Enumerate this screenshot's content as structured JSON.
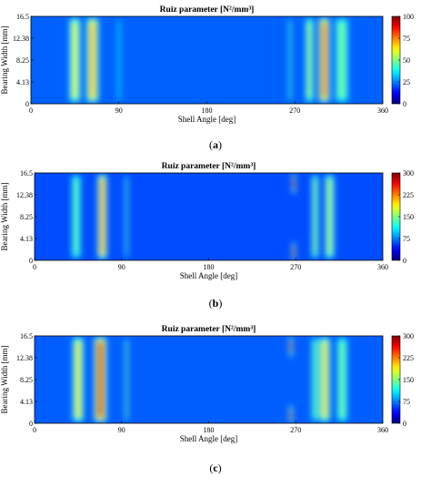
{
  "chart_data": [
    {
      "type": "heatmap",
      "panel_label": "a",
      "title": "Ruiz parameter [N²/mm³]",
      "xlabel": "Shell Angle [deg]",
      "ylabel": "Bearing Width [mm]",
      "x_ticks": [
        "0",
        "90",
        "180",
        "270",
        "360"
      ],
      "y_ticks": [
        "0",
        "4.13",
        "8.25",
        "12.38",
        "16.5"
      ],
      "xlim": [
        0,
        360
      ],
      "ylim": [
        0,
        16.5
      ],
      "colorbar": {
        "min": 0,
        "max": 100,
        "ticks": [
          "0",
          "25",
          "50",
          "75",
          "100"
        ]
      },
      "colormap": "jet",
      "background_value": 22,
      "hotspots": [
        {
          "x": 45,
          "y": 8.25,
          "x_width": 8,
          "value": 62
        },
        {
          "x": 63,
          "y": 8.25,
          "x_width": 9,
          "value": 72
        },
        {
          "x": 90,
          "y": 8.25,
          "x_width": 2,
          "value": 40
        },
        {
          "x": 265,
          "y": 8.25,
          "x_width": 2,
          "value": 45
        },
        {
          "x": 285,
          "y": 8.25,
          "x_width": 6,
          "value": 55
        },
        {
          "x": 300,
          "y": 8.25,
          "x_width": 8,
          "value": 82
        },
        {
          "x": 318,
          "y": 8.25,
          "x_width": 10,
          "value": 50
        }
      ]
    },
    {
      "type": "heatmap",
      "panel_label": "b",
      "title": "Ruiz parameter [N²/mm³]",
      "xlabel": "Shell Angle [deg]",
      "ylabel": "Bearing Width [mm]",
      "x_ticks": [
        "0",
        "90",
        "180",
        "270",
        "360"
      ],
      "y_ticks": [
        "0",
        "4.13",
        "8.25",
        "12.38",
        "16.5"
      ],
      "xlim": [
        0,
        360
      ],
      "ylim": [
        0,
        16.5
      ],
      "colorbar": {
        "min": 0,
        "max": 300,
        "ticks": [
          "0",
          "75",
          "150",
          "225",
          "300"
        ]
      },
      "colormap": "jet",
      "background_value": 60,
      "hotspots": [
        {
          "x": 43,
          "y": 8.25,
          "x_width": 7,
          "value": 145
        },
        {
          "x": 70,
          "y": 8.25,
          "x_width": 7,
          "value": 225
        },
        {
          "x": 95,
          "y": 8.25,
          "x_width": 2,
          "value": 140
        },
        {
          "x": 268,
          "y": 14.5,
          "x_width": 2,
          "value": 270
        },
        {
          "x": 268,
          "y": 1.5,
          "x_width": 2,
          "value": 250
        },
        {
          "x": 290,
          "y": 8.25,
          "x_width": 5,
          "value": 160
        },
        {
          "x": 305,
          "y": 8.25,
          "x_width": 7,
          "value": 170
        }
      ]
    },
    {
      "type": "heatmap",
      "panel_label": "c",
      "title": "Ruiz parameter [N²/mm³]",
      "xlabel": "Shell Angle [deg]",
      "ylabel": "Bearing Width [mm]",
      "x_ticks": [
        "0",
        "90",
        "180",
        "270",
        "360"
      ],
      "y_ticks": [
        "0",
        "4.13",
        "8.25",
        "12.38",
        "16.5"
      ],
      "xlim": [
        0,
        360
      ],
      "ylim": [
        0,
        16.5
      ],
      "colorbar": {
        "min": 0,
        "max": 300,
        "ticks": [
          "0",
          "75",
          "150",
          "225",
          "300"
        ]
      },
      "colormap": "jet",
      "background_value": 65,
      "hotspots": [
        {
          "x": 45,
          "y": 8.25,
          "x_width": 8,
          "value": 195
        },
        {
          "x": 68,
          "y": 8.25,
          "x_width": 9,
          "value": 280
        },
        {
          "x": 95,
          "y": 8.25,
          "x_width": 2,
          "value": 150
        },
        {
          "x": 265,
          "y": 14.5,
          "x_width": 2,
          "value": 260
        },
        {
          "x": 265,
          "y": 1.5,
          "x_width": 2,
          "value": 240
        },
        {
          "x": 290,
          "y": 8.25,
          "x_width": 5,
          "value": 150
        },
        {
          "x": 300,
          "y": 8.25,
          "x_width": 8,
          "value": 200
        },
        {
          "x": 318,
          "y": 8.25,
          "x_width": 8,
          "value": 150
        }
      ]
    }
  ]
}
